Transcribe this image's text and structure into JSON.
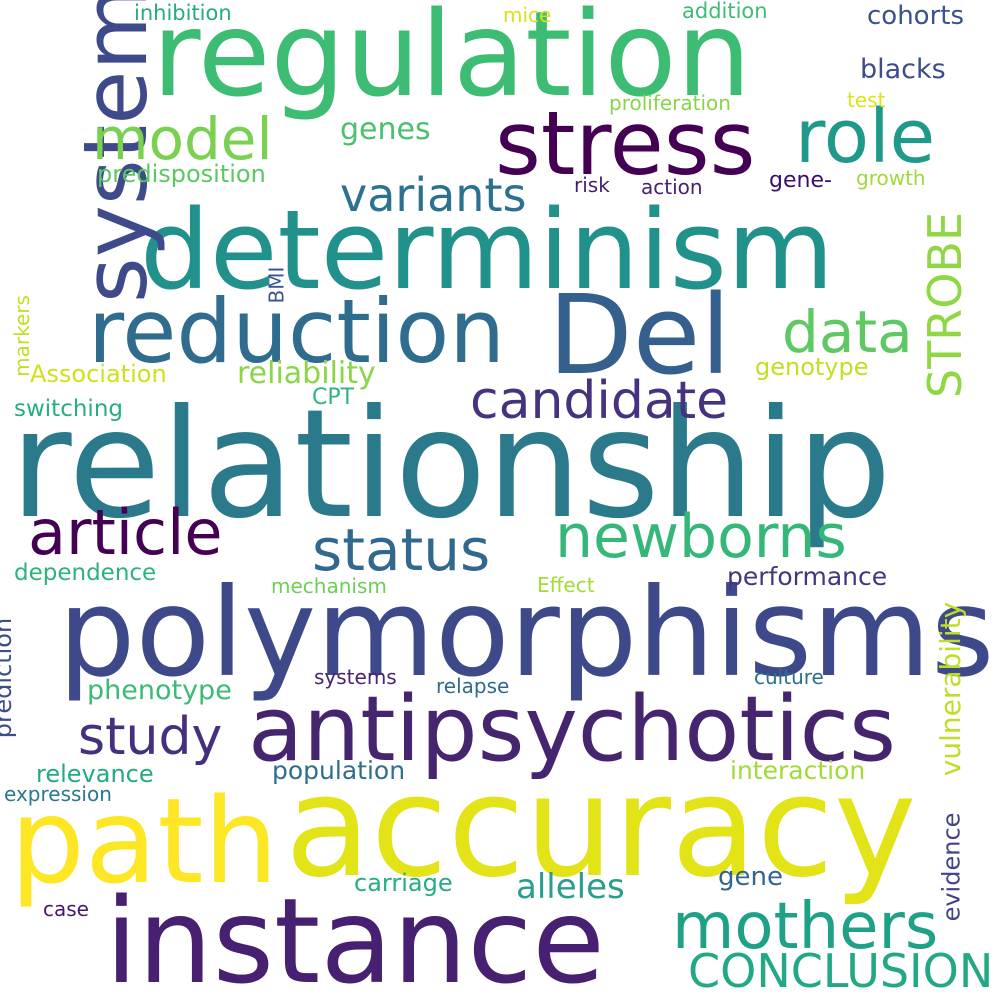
{
  "words": [
    {
      "text": "relationship",
      "color": "#2b7a8c"
    },
    {
      "text": "accuracy",
      "color": "#e3e418"
    },
    {
      "text": "polymorphisms",
      "color": "#3e4989"
    },
    {
      "text": "instance",
      "color": "#482071"
    },
    {
      "text": "antipsychotics",
      "color": "#45256e"
    },
    {
      "text": "determinism",
      "color": "#21918c"
    },
    {
      "text": "regulation",
      "color": "#3dbc74"
    },
    {
      "text": "path",
      "color": "#fde725"
    },
    {
      "text": "Del",
      "color": "#35608d"
    },
    {
      "text": "system",
      "color": "#3f4a8a"
    },
    {
      "text": "reduction",
      "color": "#2f6c8e"
    },
    {
      "text": "stress",
      "color": "#440154"
    },
    {
      "text": "role",
      "color": "#1f9a8a"
    },
    {
      "text": "mothers",
      "color": "#1fa187"
    },
    {
      "text": "newborns",
      "color": "#35b779"
    },
    {
      "text": "article",
      "color": "#440154"
    },
    {
      "text": "status",
      "color": "#31688e"
    },
    {
      "text": "model",
      "color": "#7ad151"
    },
    {
      "text": "candidate",
      "color": "#46327e"
    },
    {
      "text": "data",
      "color": "#5ec962"
    },
    {
      "text": "study",
      "color": "#46307e"
    },
    {
      "text": "STROBE",
      "color": "#8fd744"
    },
    {
      "text": "CONCLUSION",
      "color": "#22a884"
    },
    {
      "text": "variants",
      "color": "#2c728e"
    },
    {
      "text": "alleles",
      "color": "#2a9d8f"
    },
    {
      "text": "reliability",
      "color": "#8bd646"
    },
    {
      "text": "vulnerability",
      "color": "#bddf26"
    },
    {
      "text": "genes",
      "color": "#4ac16d"
    },
    {
      "text": "phenotype",
      "color": "#3bbb75"
    },
    {
      "text": "cohorts",
      "color": "#3b528b"
    },
    {
      "text": "blacks",
      "color": "#3e4c8a"
    },
    {
      "text": "performance",
      "color": "#453581"
    },
    {
      "text": "interaction",
      "color": "#a2da37"
    },
    {
      "text": "population",
      "color": "#2e6f8e"
    },
    {
      "text": "relevance",
      "color": "#23a983"
    },
    {
      "text": "carriage",
      "color": "#26ad81"
    },
    {
      "text": "evidence",
      "color": "#414487"
    },
    {
      "text": "prediction",
      "color": "#3d4d8a"
    },
    {
      "text": "predisposition",
      "color": "#5cc863"
    },
    {
      "text": "Association",
      "color": "#d0e11c"
    },
    {
      "text": "genotype",
      "color": "#c0df25"
    },
    {
      "text": "dependence",
      "color": "#2db27d"
    },
    {
      "text": "switching",
      "color": "#27ad81"
    },
    {
      "text": "gene-",
      "color": "#3b0f70"
    },
    {
      "text": "gene",
      "color": "#32648e"
    },
    {
      "text": "CPT",
      "color": "#2fb47c"
    },
    {
      "text": "expression",
      "color": "#2a788e"
    },
    {
      "text": "proliferation",
      "color": "#86d549"
    },
    {
      "text": "inhibition",
      "color": "#25ab82"
    },
    {
      "text": "addition",
      "color": "#3fbc73"
    },
    {
      "text": "mice",
      "color": "#d8e219"
    },
    {
      "text": "test",
      "color": "#dde318"
    },
    {
      "text": "growth",
      "color": "#a0da39"
    },
    {
      "text": "risk",
      "color": "#481b6d"
    },
    {
      "text": "action",
      "color": "#482173"
    },
    {
      "text": "BMI",
      "color": "#3a548c"
    },
    {
      "text": "markers",
      "color": "#c2df23"
    },
    {
      "text": "mechanism",
      "color": "#6ece58"
    },
    {
      "text": "Effect",
      "color": "#a5db36"
    },
    {
      "text": "systems",
      "color": "#482475"
    },
    {
      "text": "relapse",
      "color": "#30698e"
    },
    {
      "text": "culture",
      "color": "#2d708e"
    },
    {
      "text": "case",
      "color": "#481668"
    }
  ]
}
